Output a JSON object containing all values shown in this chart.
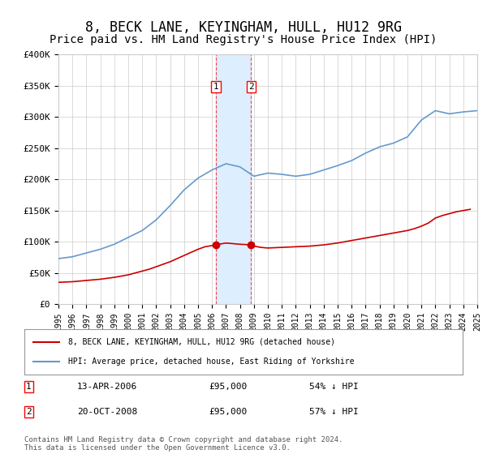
{
  "title": "8, BECK LANE, KEYINGHAM, HULL, HU12 9RG",
  "subtitle": "Price paid vs. HM Land Registry's House Price Index (HPI)",
  "title_fontsize": 12,
  "subtitle_fontsize": 10,
  "legend_line1": "8, BECK LANE, KEYINGHAM, HULL, HU12 9RG (detached house)",
  "legend_line2": "HPI: Average price, detached house, East Riding of Yorkshire",
  "transaction1_label": "1",
  "transaction1_date": "13-APR-2006",
  "transaction1_price": "£95,000",
  "transaction1_hpi": "54% ↓ HPI",
  "transaction2_label": "2",
  "transaction2_date": "20-OCT-2008",
  "transaction2_price": "£95,000",
  "transaction2_hpi": "57% ↓ HPI",
  "footer": "Contains HM Land Registry data © Crown copyright and database right 2024.\nThis data is licensed under the Open Government Licence v3.0.",
  "ylim": [
    0,
    400000
  ],
  "yticks": [
    0,
    50000,
    100000,
    150000,
    200000,
    250000,
    300000,
    350000,
    400000
  ],
  "ytick_labels": [
    "£0",
    "£50K",
    "£100K",
    "£150K",
    "£200K",
    "£250K",
    "£300K",
    "£350K",
    "£400K"
  ],
  "hpi_color": "#6699cc",
  "price_color": "#cc0000",
  "shade_color": "#ddeeff",
  "transaction1_x": 2006.28,
  "transaction2_x": 2008.8,
  "transaction1_y": 95000,
  "transaction2_y": 95000,
  "hpi_years": [
    1995,
    1996,
    1997,
    1998,
    1999,
    2000,
    2001,
    2002,
    2003,
    2004,
    2005,
    2006,
    2007,
    2008,
    2009,
    2010,
    2011,
    2012,
    2013,
    2014,
    2015,
    2016,
    2017,
    2018,
    2019,
    2020,
    2021,
    2022,
    2023,
    2024,
    2025
  ],
  "hpi_values": [
    73000,
    76000,
    82000,
    88000,
    96000,
    107000,
    118000,
    135000,
    158000,
    183000,
    202000,
    215000,
    225000,
    220000,
    205000,
    210000,
    208000,
    205000,
    208000,
    215000,
    222000,
    230000,
    242000,
    252000,
    258000,
    268000,
    295000,
    310000,
    305000,
    308000,
    310000
  ],
  "price_years": [
    1995.0,
    1995.5,
    1996,
    1996.5,
    1997,
    1997.5,
    1998,
    1998.5,
    1999,
    1999.5,
    2000,
    2000.5,
    2001,
    2001.5,
    2002,
    2002.5,
    2003,
    2003.5,
    2004,
    2004.5,
    2005,
    2005.5,
    2006.28,
    2006.5,
    2007,
    2007.5,
    2008,
    2008.8,
    2009,
    2009.5,
    2010,
    2010.5,
    2011,
    2011.5,
    2012,
    2012.5,
    2013,
    2013.5,
    2014,
    2014.5,
    2015,
    2015.5,
    2016,
    2016.5,
    2017,
    2017.5,
    2018,
    2018.5,
    2019,
    2019.5,
    2020,
    2020.5,
    2021,
    2021.5,
    2022,
    2022.5,
    2023,
    2023.5,
    2024,
    2024.5
  ],
  "price_values": [
    35000,
    35500,
    36000,
    37000,
    38000,
    39000,
    40000,
    41500,
    43000,
    45000,
    47000,
    50000,
    53000,
    56000,
    60000,
    64000,
    68000,
    73000,
    78000,
    83000,
    88000,
    92000,
    95000,
    96000,
    98000,
    97000,
    96000,
    95000,
    93000,
    91000,
    90000,
    90500,
    91000,
    91500,
    92000,
    92500,
    93000,
    94000,
    95000,
    96500,
    98000,
    100000,
    102000,
    104000,
    106000,
    108000,
    110000,
    112000,
    114000,
    116000,
    118000,
    121000,
    125000,
    130000,
    138000,
    142000,
    145000,
    148000,
    150000,
    152000
  ],
  "xlim": [
    1995,
    2025
  ],
  "xticks": [
    1995,
    1996,
    1997,
    1998,
    1999,
    2000,
    2001,
    2002,
    2003,
    2004,
    2005,
    2006,
    2007,
    2008,
    2009,
    2010,
    2011,
    2012,
    2013,
    2014,
    2015,
    2016,
    2017,
    2018,
    2019,
    2020,
    2021,
    2022,
    2023,
    2024,
    2025
  ],
  "background_color": "#ffffff",
  "grid_color": "#cccccc"
}
